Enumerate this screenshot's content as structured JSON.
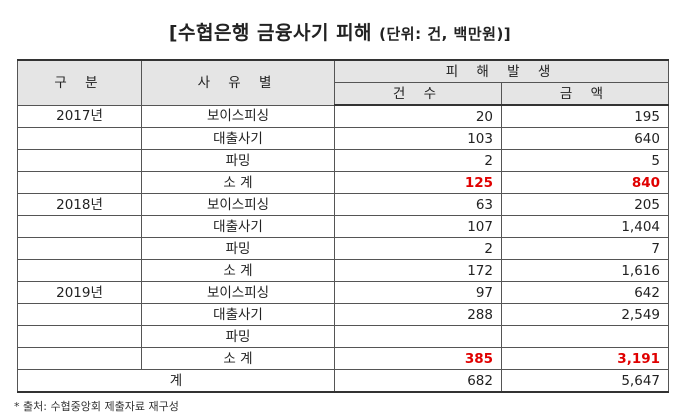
{
  "title": "[수협은행 금융사기 피해",
  "title_unit": "(단위: 건, 백만원)]",
  "headers": {
    "category": "구 분",
    "reason": "사 유 별",
    "damage": "피 해 발 생",
    "count": "건 수",
    "amount": "금 액"
  },
  "rows": [
    {
      "year": "2017년",
      "reason": "보이스피싱",
      "count": "20",
      "amount": "195"
    },
    {
      "year": "",
      "reason": "대출사기",
      "count": "103",
      "amount": "640"
    },
    {
      "year": "",
      "reason": "파밍",
      "count": "2",
      "amount": "5"
    },
    {
      "year": "",
      "reason": "소  계",
      "count": "125",
      "amount": "840",
      "highlight": true
    },
    {
      "year": "2018년",
      "reason": "보이스피싱",
      "count": "63",
      "amount": "205"
    },
    {
      "year": "",
      "reason": "대출사기",
      "count": "107",
      "amount": "1,404"
    },
    {
      "year": "",
      "reason": "파밍",
      "count": "2",
      "amount": "7"
    },
    {
      "year": "",
      "reason": "소  계",
      "count": "172",
      "amount": "1,616"
    },
    {
      "year": "2019년",
      "reason": "보이스피싱",
      "count": "97",
      "amount": "642"
    },
    {
      "year": "",
      "reason": "대출사기",
      "count": "288",
      "amount": "2,549"
    },
    {
      "year": "",
      "reason": "파밍",
      "count": "",
      "amount": ""
    },
    {
      "year": "",
      "reason": "소  계",
      "count": "385",
      "amount": "3,191",
      "highlight": true
    }
  ],
  "total": {
    "label": "계",
    "count": "682",
    "amount": "5,647"
  },
  "footnote": "* 출처: 수협중앙회 제출자료 재구성"
}
